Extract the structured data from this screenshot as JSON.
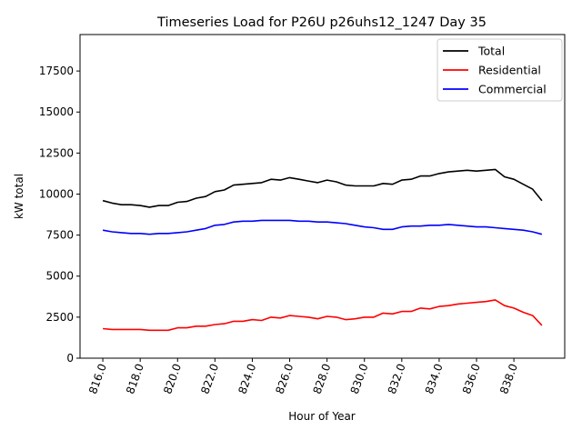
{
  "chart_data": {
    "type": "line",
    "title": "Timeseries Load for P26U p26uhs12_1247  Day 35",
    "xlabel": "Hour of Year",
    "ylabel": "kW total",
    "xlim": [
      814.78,
      840.72
    ],
    "ylim": [
      0,
      19722
    ],
    "x_ticks": [
      816,
      818,
      820,
      822,
      824,
      826,
      828,
      830,
      832,
      834,
      836,
      838
    ],
    "x_tick_labels": [
      "816.0",
      "818.0",
      "820.0",
      "822.0",
      "824.0",
      "826.0",
      "828.0",
      "830.0",
      "832.0",
      "834.0",
      "836.0",
      "838.0"
    ],
    "y_ticks": [
      0,
      2500,
      5000,
      7500,
      10000,
      12500,
      15000,
      17500
    ],
    "y_tick_labels": [
      "0",
      "2500",
      "5000",
      "7500",
      "10000",
      "12500",
      "15000",
      "17500"
    ],
    "grid": false,
    "legend_position": "top-right",
    "x": [
      816,
      816.5,
      817,
      817.5,
      818,
      818.5,
      819,
      819.5,
      820,
      820.5,
      821,
      821.5,
      822,
      822.5,
      823,
      823.5,
      824,
      824.5,
      825,
      825.5,
      826,
      826.5,
      827,
      827.5,
      828,
      828.5,
      829,
      829.5,
      830,
      830.5,
      831,
      831.5,
      832,
      832.5,
      833,
      833.5,
      834,
      834.5,
      835,
      835.5,
      836,
      836.5,
      837,
      837.5,
      838,
      838.5,
      839,
      839.5
    ],
    "series": [
      {
        "name": "Total",
        "color": "#000000",
        "values": [
          9600,
          9450,
          9350,
          9350,
          9300,
          9200,
          9300,
          9300,
          9500,
          9550,
          9750,
          9850,
          10150,
          10250,
          10550,
          10600,
          10650,
          10700,
          10900,
          10850,
          11000,
          10900,
          10800,
          10700,
          10850,
          10750,
          10550,
          10500,
          10500,
          10500,
          10650,
          10600,
          10850,
          10900,
          11100,
          11100,
          11250,
          11350,
          11400,
          11450,
          11400,
          11450,
          11500,
          11050,
          10900,
          10600,
          10300,
          9600
        ]
      },
      {
        "name": "Residential",
        "color": "#ff0000",
        "values": [
          1800,
          1750,
          1750,
          1750,
          1750,
          1700,
          1700,
          1700,
          1850,
          1850,
          1950,
          1950,
          2050,
          2100,
          2250,
          2250,
          2350,
          2300,
          2500,
          2450,
          2600,
          2550,
          2500,
          2400,
          2550,
          2500,
          2350,
          2400,
          2500,
          2500,
          2750,
          2700,
          2850,
          2850,
          3050,
          3000,
          3150,
          3200,
          3300,
          3350,
          3400,
          3450,
          3550,
          3200,
          3050,
          2800,
          2600,
          2000
        ]
      },
      {
        "name": "Commercial",
        "color": "#0000ff",
        "values": [
          7800,
          7700,
          7650,
          7600,
          7600,
          7550,
          7600,
          7600,
          7650,
          7700,
          7800,
          7900,
          8100,
          8150,
          8300,
          8350,
          8350,
          8400,
          8400,
          8400,
          8400,
          8350,
          8350,
          8300,
          8300,
          8250,
          8200,
          8100,
          8000,
          7950,
          7850,
          7850,
          8000,
          8050,
          8050,
          8100,
          8100,
          8150,
          8100,
          8050,
          8000,
          8000,
          7950,
          7900,
          7850,
          7800,
          7700,
          7550
        ]
      }
    ]
  }
}
